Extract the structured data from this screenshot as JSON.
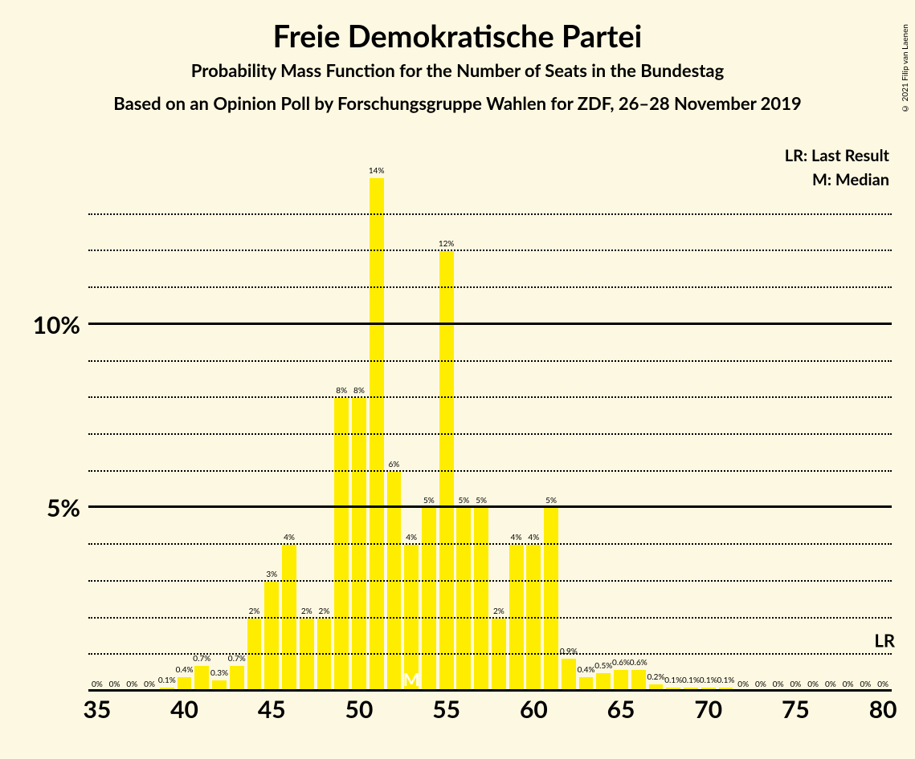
{
  "copyright": "© 2021 Filip van Laenen",
  "title": "Freie Demokratische Partei",
  "subtitle1": "Probability Mass Function for the Number of Seats in the Bundestag",
  "subtitle2": "Based on an Opinion Poll by Forschungsgruppe Wahlen for ZDF, 26–28 November 2019",
  "legend": {
    "lr": "LR: Last Result",
    "m": "M: Median"
  },
  "marks": {
    "lr": "LR",
    "m": "M"
  },
  "chart": {
    "type": "bar",
    "background_color": "#fdf8e1",
    "bar_color": "#ffed00",
    "text_color": "#000000",
    "grid_color": "#000000",
    "x_min": 35,
    "x_max": 80,
    "x_tick_step": 5,
    "y_min": 0,
    "y_max": 14,
    "y_ticks_major": [
      5,
      10
    ],
    "y_minor_step": 1,
    "bar_width_ratio": 0.82,
    "median_seat": 53,
    "lr_value": 1.4,
    "data": [
      {
        "seat": 35,
        "value": 0,
        "label": "0%"
      },
      {
        "seat": 36,
        "value": 0,
        "label": "0%"
      },
      {
        "seat": 37,
        "value": 0,
        "label": "0%"
      },
      {
        "seat": 38,
        "value": 0,
        "label": "0%"
      },
      {
        "seat": 39,
        "value": 0.1,
        "label": "0.1%"
      },
      {
        "seat": 40,
        "value": 0.4,
        "label": "0.4%"
      },
      {
        "seat": 41,
        "value": 0.7,
        "label": "0.7%"
      },
      {
        "seat": 42,
        "value": 0.3,
        "label": "0.3%"
      },
      {
        "seat": 43,
        "value": 0.7,
        "label": "0.7%"
      },
      {
        "seat": 44,
        "value": 2,
        "label": "2%"
      },
      {
        "seat": 45,
        "value": 3,
        "label": "3%"
      },
      {
        "seat": 46,
        "value": 4,
        "label": "4%"
      },
      {
        "seat": 47,
        "value": 2,
        "label": "2%"
      },
      {
        "seat": 48,
        "value": 2,
        "label": "2%"
      },
      {
        "seat": 49,
        "value": 8,
        "label": "8%"
      },
      {
        "seat": 50,
        "value": 8,
        "label": "8%"
      },
      {
        "seat": 51,
        "value": 14,
        "label": "14%"
      },
      {
        "seat": 52,
        "value": 6,
        "label": "6%"
      },
      {
        "seat": 53,
        "value": 4,
        "label": "4%"
      },
      {
        "seat": 54,
        "value": 5,
        "label": "5%"
      },
      {
        "seat": 55,
        "value": 12,
        "label": "12%"
      },
      {
        "seat": 56,
        "value": 5,
        "label": "5%"
      },
      {
        "seat": 57,
        "value": 5,
        "label": "5%"
      },
      {
        "seat": 58,
        "value": 2,
        "label": "2%"
      },
      {
        "seat": 59,
        "value": 4,
        "label": "4%"
      },
      {
        "seat": 60,
        "value": 4,
        "label": "4%"
      },
      {
        "seat": 61,
        "value": 5,
        "label": "5%"
      },
      {
        "seat": 62,
        "value": 0.9,
        "label": "0.9%"
      },
      {
        "seat": 63,
        "value": 0.4,
        "label": "0.4%"
      },
      {
        "seat": 64,
        "value": 0.5,
        "label": "0.5%"
      },
      {
        "seat": 65,
        "value": 0.6,
        "label": "0.6%"
      },
      {
        "seat": 66,
        "value": 0.6,
        "label": "0.6%"
      },
      {
        "seat": 67,
        "value": 0.2,
        "label": "0.2%"
      },
      {
        "seat": 68,
        "value": 0.1,
        "label": "0.1%"
      },
      {
        "seat": 69,
        "value": 0.1,
        "label": "0.1%"
      },
      {
        "seat": 70,
        "value": 0.1,
        "label": "0.1%"
      },
      {
        "seat": 71,
        "value": 0.1,
        "label": "0.1%"
      },
      {
        "seat": 72,
        "value": 0,
        "label": "0%"
      },
      {
        "seat": 73,
        "value": 0,
        "label": "0%"
      },
      {
        "seat": 74,
        "value": 0,
        "label": "0%"
      },
      {
        "seat": 75,
        "value": 0,
        "label": "0%"
      },
      {
        "seat": 76,
        "value": 0,
        "label": "0%"
      },
      {
        "seat": 77,
        "value": 0,
        "label": "0%"
      },
      {
        "seat": 78,
        "value": 0,
        "label": "0%"
      },
      {
        "seat": 79,
        "value": 0,
        "label": "0%"
      },
      {
        "seat": 80,
        "value": 0,
        "label": "0%"
      }
    ]
  }
}
